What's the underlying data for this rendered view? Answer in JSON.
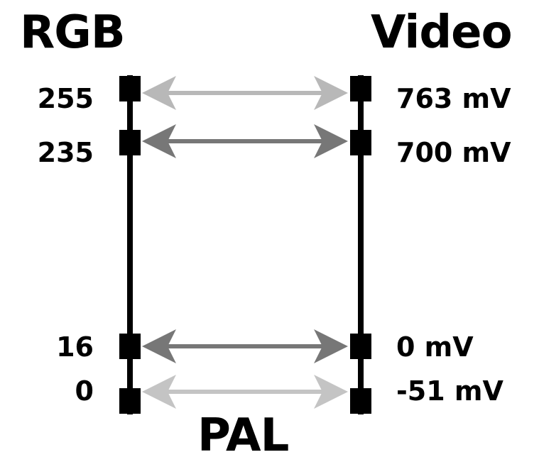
{
  "headers": {
    "left": "RGB",
    "right": "Video",
    "bottom": "PAL"
  },
  "levels": [
    {
      "rgb": "255",
      "video": "763 mV",
      "arrow_color": "#b8b8b8"
    },
    {
      "rgb": "235",
      "video": "700 mV",
      "arrow_color": "#777777"
    },
    {
      "rgb": "16",
      "video": "0 mV",
      "arrow_color": "#777777"
    },
    {
      "rgb": "0",
      "video": "-51 mV",
      "arrow_color": "#c4c4c4"
    }
  ],
  "colors": {
    "axis": "#000000",
    "background": "#ffffff"
  }
}
